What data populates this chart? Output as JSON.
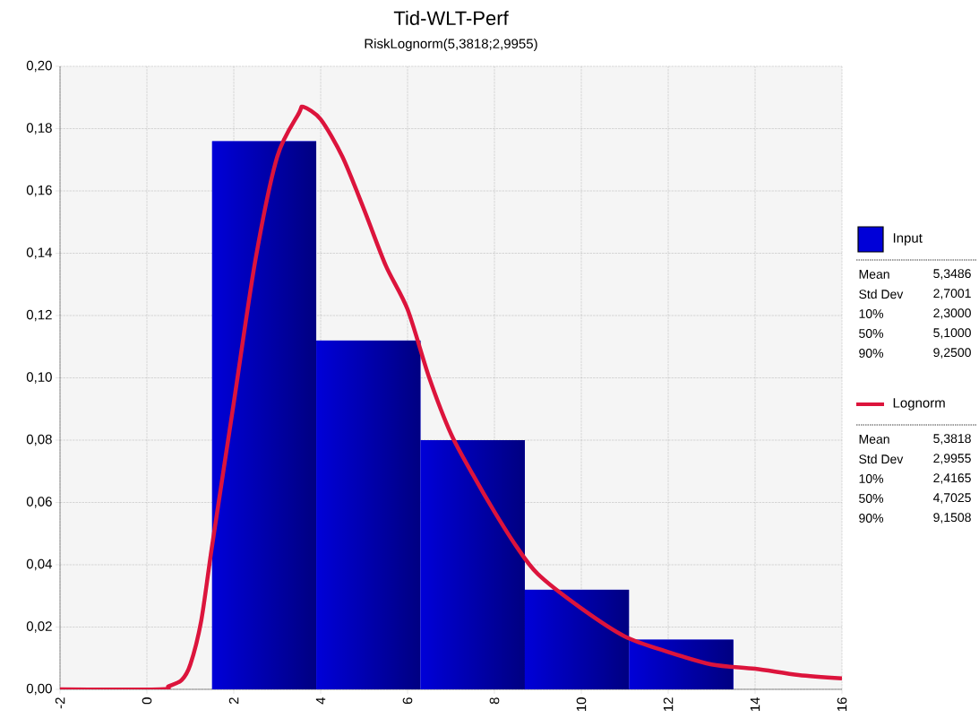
{
  "chart_data": {
    "type": "histogram",
    "title": "Tid-WLT-Perf",
    "subtitle": "RiskLognorm(5,3818;2,9955)",
    "series": [
      {
        "name": "Input",
        "color": "#0000d8",
        "bins": [
          1.5,
          3.9,
          6.3,
          8.7,
          11.1,
          13.5
        ],
        "values": [
          0.176,
          0.112,
          0.08,
          0.032,
          0.016
        ]
      },
      {
        "name": "Lognorm",
        "type": "line",
        "color": "#dc143c",
        "x": [
          -2,
          0.3,
          0.5,
          0.8,
          1.0,
          1.25,
          1.5,
          2,
          2.5,
          3,
          3.5,
          3.6,
          4,
          4.5,
          5,
          5.5,
          6,
          6.5,
          7,
          7.5,
          8,
          8.5,
          9,
          10,
          11,
          12,
          13,
          14,
          15,
          16
        ],
        "values": [
          0,
          0,
          0.001,
          0.003,
          0.008,
          0.022,
          0.046,
          0.092,
          0.138,
          0.171,
          0.185,
          0.187,
          0.183,
          0.171,
          0.154,
          0.136,
          0.122,
          0.1,
          0.082,
          0.069,
          0.057,
          0.046,
          0.037,
          0.026,
          0.017,
          0.012,
          0.008,
          0.0066,
          0.0046,
          0.0035
        ]
      }
    ],
    "xlim": [
      -2,
      16
    ],
    "xticks": [
      -2,
      0,
      2,
      4,
      6,
      8,
      10,
      12,
      14,
      16
    ],
    "ylim": [
      0,
      0.2
    ],
    "yticks": [
      {
        "value": 0,
        "label": "0,00"
      },
      {
        "value": 0.02,
        "label": "0,02"
      },
      {
        "value": 0.04,
        "label": "0,04"
      },
      {
        "value": 0.06,
        "label": "0,06"
      },
      {
        "value": 0.08,
        "label": "0,08"
      },
      {
        "value": 0.1,
        "label": "0,10"
      },
      {
        "value": 0.12,
        "label": "0,12"
      },
      {
        "value": 0.14,
        "label": "0,14"
      },
      {
        "value": 0.16,
        "label": "0,16"
      },
      {
        "value": 0.18,
        "label": "0,18"
      },
      {
        "value": 0.2,
        "label": "0,20"
      }
    ],
    "grid": true,
    "legend": "right",
    "annotations": [
      "Mean",
      "5,3486",
      "Std Dev",
      "2,7001",
      "10%",
      "2,3000",
      "50%",
      "5,1000",
      "90%",
      "9,2500",
      "Mean",
      "5,3818",
      "Std Dev",
      "2,9955",
      "10%",
      "2,4165",
      "50%",
      "4,7025",
      "90%",
      "9,1508"
    ]
  }
}
